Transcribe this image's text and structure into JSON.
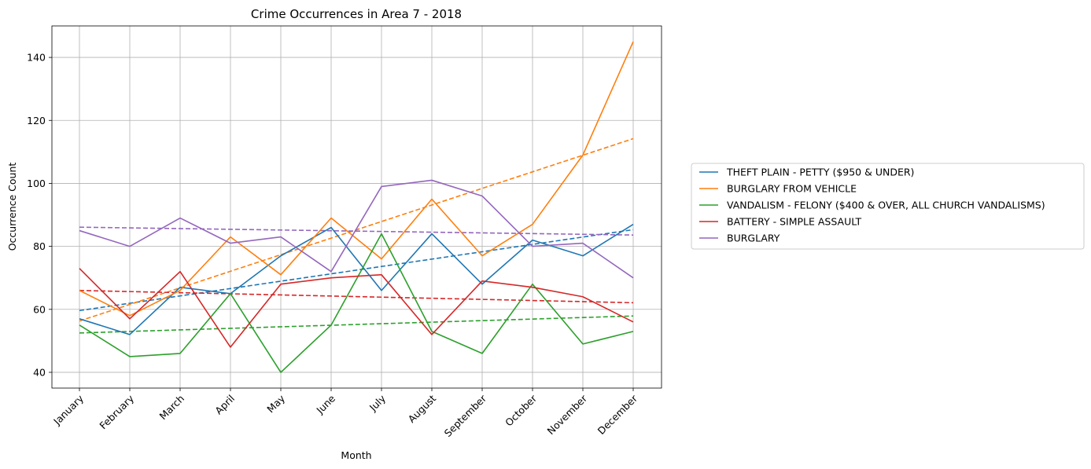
{
  "chart_data": {
    "type": "line",
    "title": "Crime Occurrences in Area 7 - 2018",
    "xlabel": "Month",
    "ylabel": "Occurrence Count",
    "categories": [
      "January",
      "February",
      "March",
      "April",
      "May",
      "June",
      "July",
      "August",
      "September",
      "October",
      "November",
      "December"
    ],
    "ylim": [
      35,
      150
    ],
    "yticks": [
      "40",
      "60",
      "80",
      "100",
      "120",
      "140"
    ],
    "grid": true,
    "legend_position": "right, outside plot",
    "trend_line_style": "dashed linear trend per series",
    "series": [
      {
        "name": "THEFT PLAIN - PETTY ($950 & UNDER)",
        "color": "#1f77b4",
        "values": [
          57,
          52,
          67,
          65,
          77,
          86,
          66,
          84,
          68,
          82,
          77,
          87
        ],
        "trend": [
          59.6,
          85.3
        ]
      },
      {
        "name": "BURGLARY FROM VEHICLE",
        "color": "#ff7f0e",
        "values": [
          66,
          58,
          66,
          83,
          71,
          89,
          76,
          95,
          77,
          87,
          109,
          145
        ],
        "trend": [
          56.3,
          114.2
        ]
      },
      {
        "name": "VANDALISM - FELONY ($400 & OVER, ALL CHURCH VANDALISMS)",
        "color": "#2ca02c",
        "values": [
          55,
          45,
          46,
          65,
          40,
          55,
          84,
          53,
          46,
          68,
          49,
          53
        ],
        "trend": [
          52.5,
          57.9
        ]
      },
      {
        "name": "BATTERY - SIMPLE ASSAULT",
        "color": "#d62728",
        "values": [
          73,
          57,
          72,
          48,
          68,
          70,
          71,
          52,
          69,
          67,
          64,
          56
        ],
        "trend": [
          66,
          62.1
        ]
      },
      {
        "name": "BURGLARY",
        "color": "#9467bd",
        "values": [
          85,
          80,
          89,
          81,
          83,
          72,
          99,
          101,
          96,
          80,
          81,
          70
        ],
        "trend": [
          86.1,
          83.6
        ]
      }
    ]
  }
}
